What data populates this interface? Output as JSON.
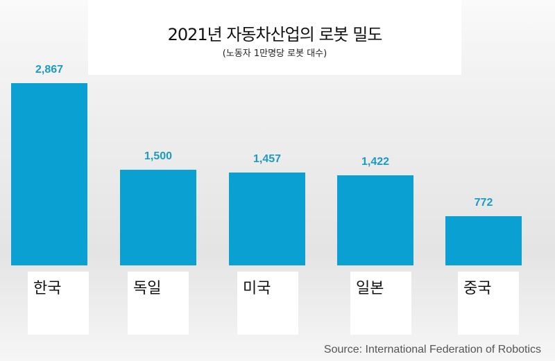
{
  "chart_data": {
    "type": "bar",
    "title": "2021년 자동차산업의 로봇 밀도",
    "subtitle": "(노동자 1만명당 로봇 대수)",
    "categories": [
      "한국",
      "독일",
      "미국",
      "일본",
      "중국"
    ],
    "values": [
      2867,
      1500,
      1457,
      1422,
      772
    ],
    "value_labels": [
      "2,867",
      "1,500",
      "1,457",
      "1,422",
      "772"
    ],
    "xlabel": "",
    "ylabel": "",
    "ylim": [
      0,
      2867
    ],
    "grid": false,
    "bar_color": "#0aa0d2",
    "label_color": "#1b9bc4",
    "source": "Source: International  Federation of Robotics"
  }
}
